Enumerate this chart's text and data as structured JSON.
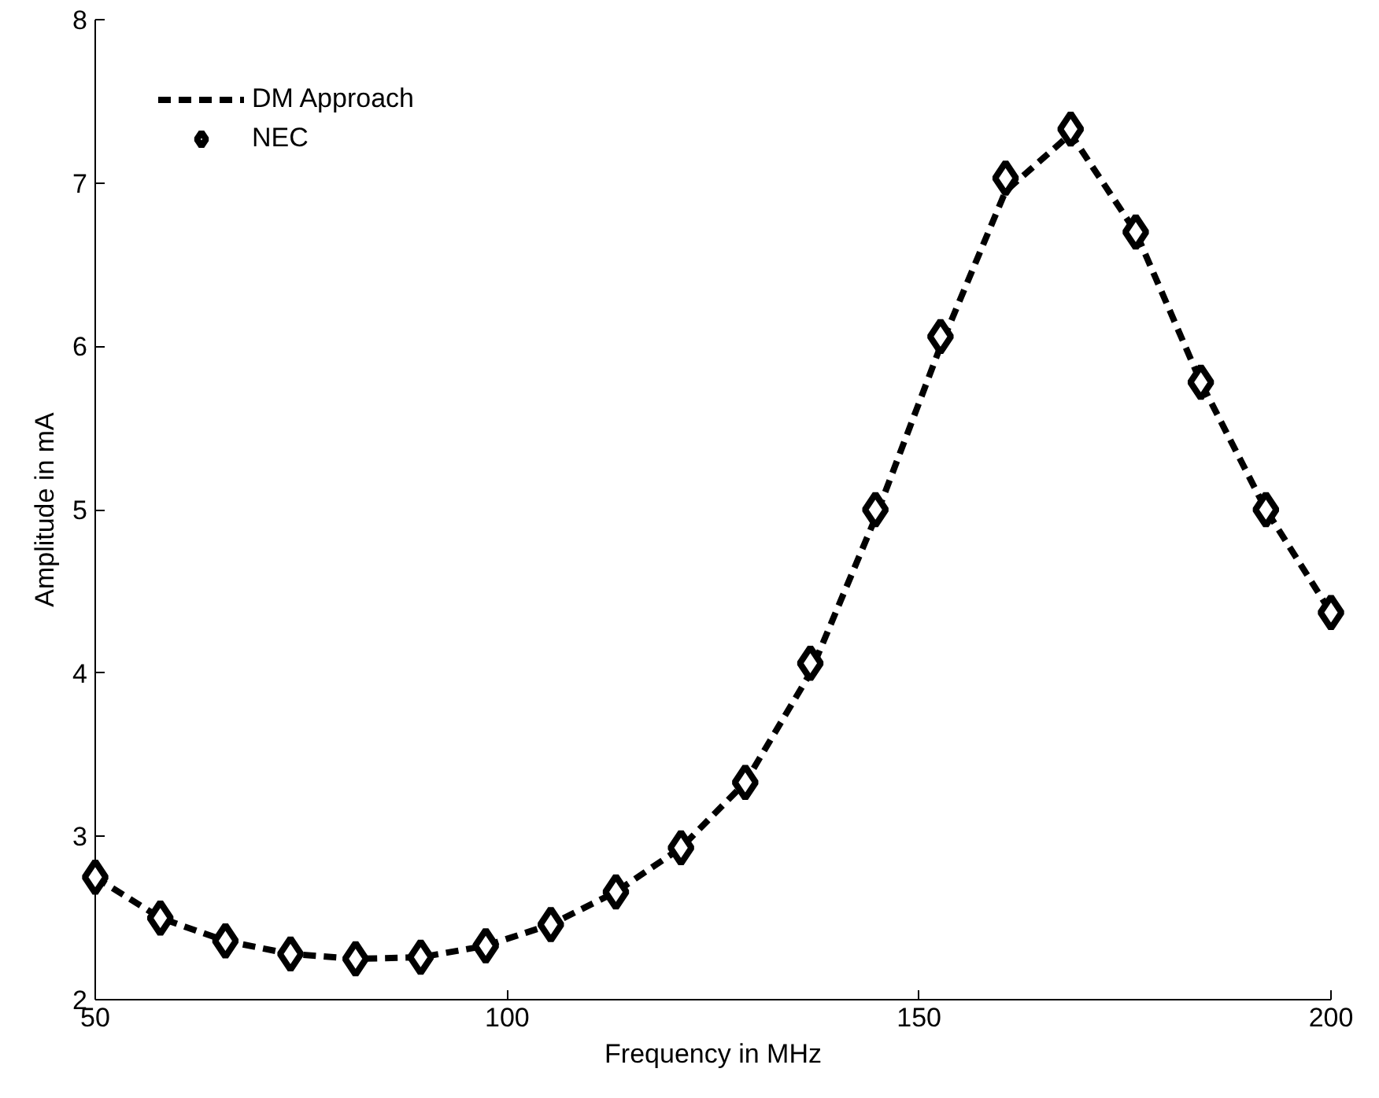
{
  "chart_data": {
    "type": "line",
    "xlabel": "Frequency in MHz",
    "ylabel": "Amplitude in mA",
    "xlim": [
      50,
      200
    ],
    "ylim": [
      2,
      8
    ],
    "xticks": [
      50,
      100,
      150,
      200
    ],
    "yticks": [
      2,
      3,
      4,
      5,
      6,
      7,
      8
    ],
    "grid": false,
    "legend": "top left",
    "series": [
      {
        "name": "DM Approach",
        "type": "line",
        "line_style": "dashed",
        "marker": "none",
        "color": "#000000",
        "x": [
          50,
          57.9,
          65.8,
          73.7,
          81.6,
          89.5,
          97.4,
          105.3,
          113.2,
          121.1,
          128.9,
          136.8,
          144.7,
          152.6,
          160.5,
          168.4,
          176.3,
          184.2,
          192.1,
          200
        ],
        "values": [
          2.75,
          2.5,
          2.36,
          2.28,
          2.25,
          2.26,
          2.33,
          2.46,
          2.66,
          2.93,
          3.33,
          4.0,
          4.95,
          6.0,
          6.95,
          7.3,
          6.7,
          5.78,
          5.0,
          4.37
        ]
      },
      {
        "name": "NEC",
        "type": "scatter",
        "marker": "diamond",
        "color": "#000000",
        "x": [
          50,
          57.9,
          65.8,
          73.7,
          81.6,
          89.5,
          97.4,
          105.3,
          113.2,
          121.1,
          128.9,
          136.8,
          144.7,
          152.6,
          160.5,
          168.4,
          176.3,
          184.2,
          192.1,
          200
        ],
        "values": [
          2.75,
          2.5,
          2.36,
          2.28,
          2.25,
          2.26,
          2.33,
          2.46,
          2.66,
          2.93,
          3.33,
          4.06,
          5.0,
          6.06,
          7.03,
          7.33,
          6.7,
          5.78,
          5.0,
          4.37
        ]
      }
    ]
  }
}
